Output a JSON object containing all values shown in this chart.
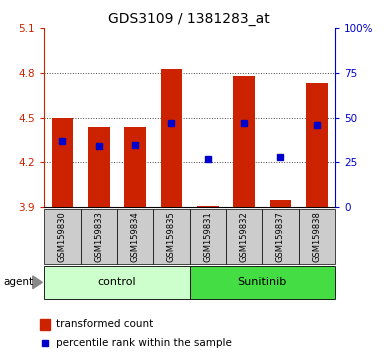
{
  "title": "GDS3109 / 1381283_at",
  "samples": [
    "GSM159830",
    "GSM159833",
    "GSM159834",
    "GSM159835",
    "GSM159831",
    "GSM159832",
    "GSM159837",
    "GSM159838"
  ],
  "groups": [
    "control",
    "control",
    "control",
    "control",
    "Sunitinib",
    "Sunitinib",
    "Sunitinib",
    "Sunitinib"
  ],
  "transformed_count": [
    4.5,
    4.44,
    4.44,
    4.83,
    3.91,
    4.78,
    3.95,
    4.73
  ],
  "percentile_rank": [
    37,
    34,
    35,
    47,
    27,
    47,
    28,
    46
  ],
  "ylim_left": [
    3.9,
    5.1
  ],
  "ylim_right": [
    0,
    100
  ],
  "yticks_left": [
    3.9,
    4.2,
    4.5,
    4.8,
    5.1
  ],
  "yticks_right": [
    0,
    25,
    50,
    75,
    100
  ],
  "ytick_labels_left": [
    "3.9",
    "4.2",
    "4.5",
    "4.8",
    "5.1"
  ],
  "ytick_labels_right": [
    "0",
    "25",
    "50",
    "75",
    "100%"
  ],
  "bar_color": "#cc2200",
  "dot_color": "#0000cc",
  "baseline": 3.9,
  "control_bg": "#ccffcc",
  "sunitinib_bg": "#44dd44",
  "sample_bg": "#cccccc",
  "grid_color": "#444444",
  "left_axis_color": "#cc2200",
  "right_axis_color": "#0000cc",
  "legend_red_label": "transformed count",
  "legend_blue_label": "percentile rank within the sample",
  "bar_width": 0.6
}
